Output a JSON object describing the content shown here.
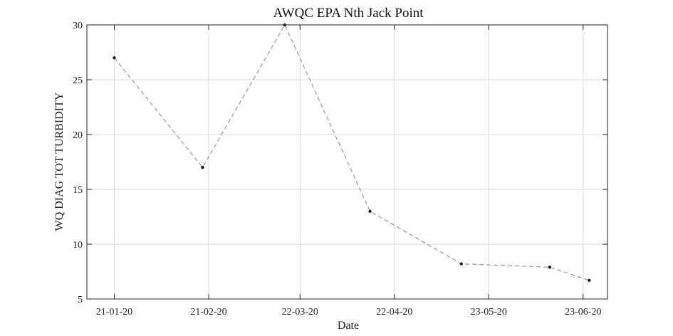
{
  "chart_data": {
    "type": "line",
    "title": "AWQC EPA Nth Jack Point",
    "xlabel": "Date",
    "ylabel": "WQ DIAG TOT TURBIDITY",
    "x_axis_type": "date",
    "xlim": [
      "2020-01-12",
      "2020-07-01"
    ],
    "ylim": [
      5,
      30
    ],
    "grid": true,
    "legend": "none",
    "x_ticks": [
      {
        "date": "2020-01-21",
        "label": "21-01-20"
      },
      {
        "date": "2020-02-21",
        "label": "21-02-20"
      },
      {
        "date": "2020-03-22",
        "label": "22-03-20"
      },
      {
        "date": "2020-04-22",
        "label": "22-04-20"
      },
      {
        "date": "2020-05-23",
        "label": "23-05-20"
      },
      {
        "date": "2020-06-23",
        "label": "23-06-20"
      }
    ],
    "y_ticks": [
      5,
      10,
      15,
      20,
      25,
      30
    ],
    "series": [
      {
        "line_style": "dashed",
        "line_color": "#999999",
        "marker_color": "#222222",
        "points": [
          {
            "x": "2020-01-21",
            "y": 27
          },
          {
            "x": "2020-02-19",
            "y": 17
          },
          {
            "x": "2020-03-17",
            "y": 30
          },
          {
            "x": "2020-04-14",
            "y": 13
          },
          {
            "x": "2020-05-14",
            "y": 8.2
          },
          {
            "x": "2020-06-12",
            "y": 7.9
          },
          {
            "x": "2020-06-25",
            "y": 6.7
          }
        ]
      }
    ]
  }
}
